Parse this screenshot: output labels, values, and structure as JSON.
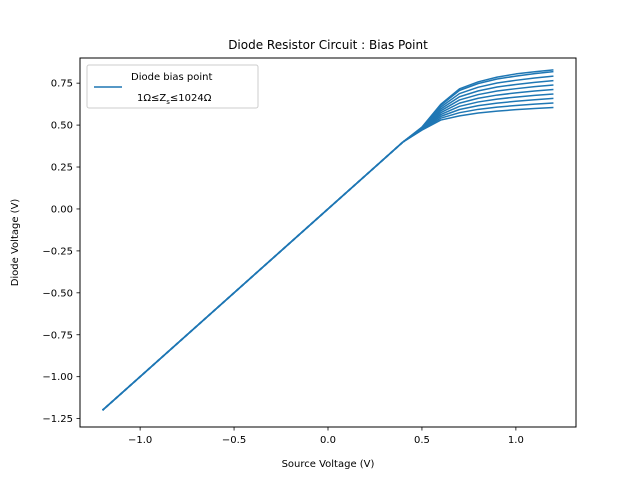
{
  "chart_data": {
    "type": "line",
    "title": "Diode Resistor Circuit : Bias Point",
    "xlabel": "Source Voltage (V)",
    "ylabel": "Diode Voltage (V)",
    "xlim": [
      -1.32,
      1.32
    ],
    "ylim": [
      -1.3,
      0.9
    ],
    "xticks": [
      -1.0,
      -0.5,
      0.0,
      0.5,
      1.0
    ],
    "xtick_labels": [
      "−1.0",
      "−0.5",
      "0.0",
      "0.5",
      "1.0"
    ],
    "yticks": [
      -1.25,
      -1.0,
      -0.75,
      -0.5,
      -0.25,
      0.0,
      0.25,
      0.5,
      0.75
    ],
    "ytick_labels": [
      "−1.25",
      "−1.00",
      "−0.75",
      "−0.50",
      "−0.25",
      "0.00",
      "0.25",
      "0.50",
      "0.75"
    ],
    "grid": false,
    "legend": {
      "position": "upper-left",
      "line1": "Diode bias point",
      "line2": "1Ω≤Z",
      "line2_sub": "s",
      "line2_end": "≤1024Ω"
    },
    "color": "#1f77b4",
    "series_x": [
      -1.2,
      0.0,
      0.4,
      0.5,
      0.6,
      0.7,
      0.8,
      0.9,
      1.0,
      1.1,
      1.2
    ],
    "series": [
      {
        "values": [
          -1.2,
          0.0,
          0.4,
          0.47,
          0.53,
          0.555,
          0.572,
          0.583,
          0.592,
          0.599,
          0.605
        ]
      },
      {
        "values": [
          -1.2,
          0.0,
          0.4,
          0.472,
          0.541,
          0.574,
          0.594,
          0.607,
          0.617,
          0.625,
          0.632
        ]
      },
      {
        "values": [
          -1.2,
          0.0,
          0.4,
          0.474,
          0.552,
          0.593,
          0.616,
          0.631,
          0.642,
          0.651,
          0.659
        ]
      },
      {
        "values": [
          -1.2,
          0.0,
          0.4,
          0.476,
          0.563,
          0.612,
          0.638,
          0.655,
          0.667,
          0.677,
          0.685
        ]
      },
      {
        "values": [
          -1.2,
          0.0,
          0.4,
          0.478,
          0.574,
          0.631,
          0.66,
          0.679,
          0.692,
          0.703,
          0.712
        ]
      },
      {
        "values": [
          -1.2,
          0.0,
          0.4,
          0.48,
          0.585,
          0.65,
          0.682,
          0.703,
          0.717,
          0.729,
          0.739
        ]
      },
      {
        "values": [
          -1.2,
          0.0,
          0.4,
          0.482,
          0.596,
          0.669,
          0.704,
          0.727,
          0.742,
          0.755,
          0.765
        ]
      },
      {
        "values": [
          -1.2,
          0.0,
          0.4,
          0.484,
          0.607,
          0.688,
          0.726,
          0.751,
          0.767,
          0.781,
          0.792
        ]
      },
      {
        "values": [
          -1.2,
          0.0,
          0.4,
          0.486,
          0.618,
          0.707,
          0.748,
          0.775,
          0.792,
          0.807,
          0.819
        ]
      },
      {
        "values": [
          -1.2,
          0.0,
          0.4,
          0.488,
          0.624,
          0.716,
          0.758,
          0.786,
          0.805,
          0.818,
          0.829
        ]
      }
    ]
  }
}
